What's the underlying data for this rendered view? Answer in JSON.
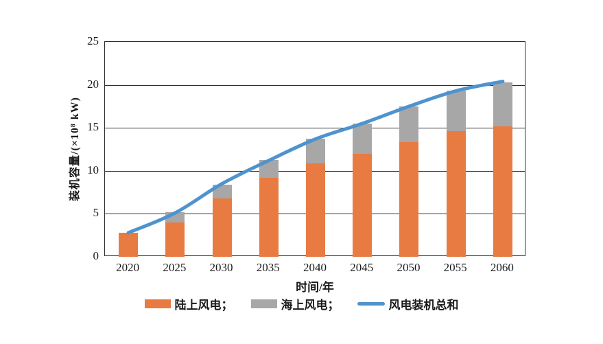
{
  "chart_data": {
    "type": "bar",
    "stacked": true,
    "title": "",
    "xlabel": "时间/年",
    "ylabel": "装机容量/(×10⁸ kW)",
    "categories": [
      "2020",
      "2025",
      "2030",
      "2035",
      "2040",
      "2045",
      "2050",
      "2055",
      "2060"
    ],
    "series": [
      {
        "name": "陆上风电",
        "type": "bar",
        "color": "#E87B42",
        "values": [
          2.8,
          4.0,
          6.8,
          9.2,
          10.9,
          12.0,
          13.3,
          14.6,
          15.2
        ]
      },
      {
        "name": "海上风电",
        "type": "bar",
        "color": "#A7A7A7",
        "values": [
          0,
          1.2,
          1.6,
          2.1,
          2.8,
          3.5,
          4.2,
          4.7,
          5.1
        ]
      },
      {
        "name": "风电装机总和",
        "type": "line",
        "color": "#4F93CE",
        "values": [
          2.8,
          5.1,
          8.5,
          11.2,
          13.7,
          15.5,
          17.5,
          19.3,
          20.4
        ]
      }
    ],
    "ylim": [
      0,
      25
    ],
    "yticks": [
      0,
      5,
      10,
      15,
      20,
      25
    ],
    "grid": "horizontal",
    "legend_position": "bottom",
    "legend": [
      {
        "label": "陆上风电；",
        "swatch": "rect",
        "color": "#E87B42"
      },
      {
        "label": "海上风电；",
        "swatch": "rect",
        "color": "#A7A7A7"
      },
      {
        "label": "风电装机总和",
        "swatch": "line",
        "color": "#4F93CE"
      }
    ],
    "colors": {
      "axis": "#2e2e2e",
      "background": "#ffffff"
    }
  }
}
